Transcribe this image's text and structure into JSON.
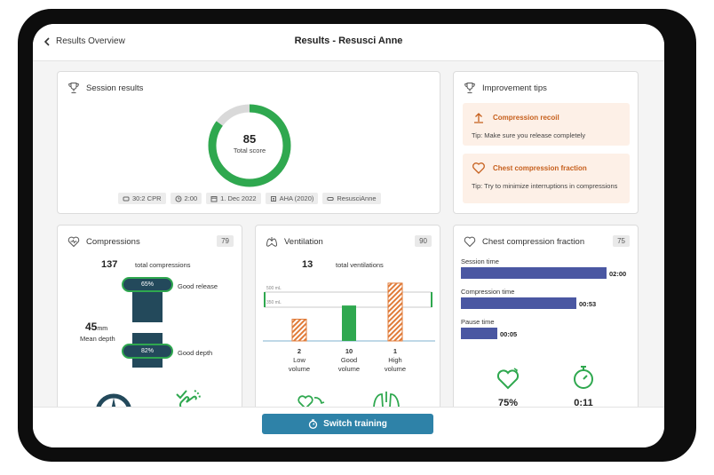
{
  "header": {
    "back_label": "Results Overview",
    "title": "Results - Resusci Anne"
  },
  "colors": {
    "green": "#2fa84f",
    "orange": "#e07b39",
    "blue_bar": "#4a57a2",
    "button": "#2e82a8",
    "dark_teal": "#23495b"
  },
  "session": {
    "title": "Session results",
    "score": "85",
    "score_label": "Total score",
    "score_fraction": 0.85,
    "tags": [
      {
        "icon": "cpr-icon",
        "text": "30:2 CPR"
      },
      {
        "icon": "clock-icon",
        "text": "2:00"
      },
      {
        "icon": "calendar-icon",
        "text": "1. Dec 2022"
      },
      {
        "icon": "guideline-icon",
        "text": "AHA (2020)"
      },
      {
        "icon": "manikin-icon",
        "text": "ResusciAnne"
      }
    ]
  },
  "tips": {
    "title": "Improvement tips",
    "items": [
      {
        "title": "Compression recoil",
        "body": "Tip: Make sure you release completely"
      },
      {
        "title": "Chest compression fraction",
        "body": "Tip: Try to minimize interruptions in compressions"
      }
    ]
  },
  "compressions": {
    "title": "Compressions",
    "badge": "79",
    "count": "137",
    "count_label": "total compressions",
    "release_pct": "65%",
    "release_label": "Good release",
    "depth_value": "45",
    "depth_unit": "mm",
    "depth_label": "Mean depth",
    "depth_pct": "82%",
    "depth_pct_label": "Good depth"
  },
  "ventilation": {
    "title": "Ventilation",
    "badge": "90",
    "count": "13",
    "count_label": "total ventilations",
    "line_top": "500 mL",
    "line_bottom": "350 mL",
    "bars": [
      {
        "value": "2",
        "label1": "Low",
        "label2": "volume",
        "height_fraction": 0.35
      },
      {
        "value": "10",
        "label1": "Good",
        "label2": "volume",
        "height_fraction": 0.57
      },
      {
        "value": "1",
        "label1": "High",
        "label2": "volume",
        "height_fraction": 0.93
      }
    ]
  },
  "ccf": {
    "title": "Chest compression fraction",
    "badge": "75",
    "rows": [
      {
        "label": "Session time",
        "value": "02:00",
        "fraction": 1.0
      },
      {
        "label": "Compression time",
        "value": "00:53",
        "fraction": 0.79
      },
      {
        "label": "Pause time",
        "value": "00:05",
        "fraction": 0.25
      }
    ],
    "fraction_value": "75%",
    "hands_off_time": "0:11"
  },
  "footer": {
    "switch_label": "Switch training"
  }
}
